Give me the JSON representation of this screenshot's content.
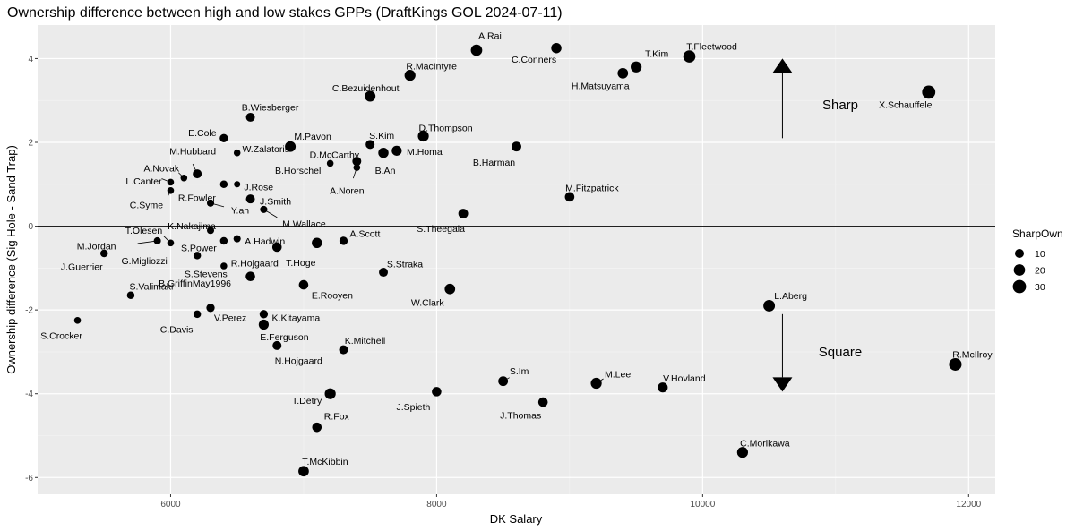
{
  "chart_data": {
    "type": "scatter",
    "title": "Ownership difference between high and low stakes GPPs (DraftKings GOL 2024-07-11)",
    "xlabel": "DK Salary",
    "ylabel": "Ownership difference (Sig Hole - Sand Trap)",
    "xlim": [
      5000,
      12200
    ],
    "ylim": [
      -6.4,
      4.8
    ],
    "xticks": [
      6000,
      8000,
      10000,
      12000
    ],
    "xtick_labels": [
      "6000",
      "8000",
      "10000",
      "12000"
    ],
    "yticks": [
      -6,
      -4,
      -2,
      0,
      2,
      4
    ],
    "ytick_labels": [
      "-6",
      "-4",
      "-2",
      "0",
      "2",
      "4"
    ],
    "grid": true,
    "hline": 0,
    "legend": {
      "title": "SharpOwn",
      "position": "right",
      "entries": [
        {
          "label": "10",
          "value": 10
        },
        {
          "label": "20",
          "value": 20
        },
        {
          "label": "30",
          "value": 30
        }
      ]
    },
    "annotations": [
      {
        "text": "Sharp",
        "x": 10900,
        "y": 2.9,
        "arrow": "up"
      },
      {
        "text": "Square",
        "x": 10900,
        "y": -3.0,
        "arrow": "down"
      }
    ],
    "points": [
      {
        "name": "A.Rai",
        "x": 8300,
        "y": 4.2,
        "size": 20
      },
      {
        "name": "C.Conners",
        "x": 8900,
        "y": 4.25,
        "size": 15
      },
      {
        "name": "T.Fleetwood",
        "x": 9900,
        "y": 4.05,
        "size": 24
      },
      {
        "name": "T.Kim",
        "x": 9500,
        "y": 3.8,
        "size": 18
      },
      {
        "name": "H.Matsuyama",
        "x": 9400,
        "y": 3.65,
        "size": 16
      },
      {
        "name": "R.MacIntyre",
        "x": 7800,
        "y": 3.6,
        "size": 18
      },
      {
        "name": "X.Schauffele",
        "x": 11700,
        "y": 3.2,
        "size": 30
      },
      {
        "name": "C.Bezuidenhout",
        "x": 7500,
        "y": 3.1,
        "size": 17
      },
      {
        "name": "B.Wiesberger",
        "x": 6600,
        "y": 2.6,
        "size": 10
      },
      {
        "name": "E.Cole",
        "x": 6400,
        "y": 2.1,
        "size": 8
      },
      {
        "name": "W.Zalatoris",
        "x": 6500,
        "y": 1.75,
        "size": 4
      },
      {
        "name": "M.Pavon",
        "x": 6900,
        "y": 1.9,
        "size": 17
      },
      {
        "name": "S.Kim",
        "x": 7500,
        "y": 1.95,
        "size": 10
      },
      {
        "name": "D.Thompson",
        "x": 7900,
        "y": 2.15,
        "size": 18
      },
      {
        "name": "M.Homa",
        "x": 7700,
        "y": 1.8,
        "size": 14
      },
      {
        "name": "D.McCarthy",
        "x": 7400,
        "y": 1.55,
        "size": 10
      },
      {
        "name": "B.Horschel",
        "x": 7200,
        "y": 1.5,
        "size": 4
      },
      {
        "name": "B.An",
        "x": 7600,
        "y": 1.75,
        "size": 15
      },
      {
        "name": "A.Noren",
        "x": 7400,
        "y": 1.4,
        "size": 4
      },
      {
        "name": "B.Harman",
        "x": 8600,
        "y": 1.9,
        "size": 13
      },
      {
        "name": "A.Novak",
        "x": 6100,
        "y": 1.15,
        "size": 4
      },
      {
        "name": "M.Hubbard",
        "x": 6200,
        "y": 1.25,
        "size": 10
      },
      {
        "name": "L.Canter",
        "x": 6000,
        "y": 1.05,
        "size": 4
      },
      {
        "name": "R.Fowler",
        "x": 6400,
        "y": 1.0,
        "size": 6
      },
      {
        "name": "J.Rose",
        "x": 6500,
        "y": 1.0,
        "size": 3
      },
      {
        "name": "C.Syme",
        "x": 6000,
        "y": 0.85,
        "size": 4
      },
      {
        "name": "M.Fitzpatrick",
        "x": 9000,
        "y": 0.7,
        "size": 12
      },
      {
        "name": "J.Smith",
        "x": 6600,
        "y": 0.65,
        "size": 10
      },
      {
        "name": "Y.an",
        "x": 6300,
        "y": 0.55,
        "size": 5
      },
      {
        "name": "M.Wallace",
        "x": 6700,
        "y": 0.4,
        "size": 5
      },
      {
        "name": "S.Theegala",
        "x": 8200,
        "y": 0.3,
        "size": 13
      },
      {
        "name": "K.Nakajima",
        "x": 6300,
        "y": -0.1,
        "size": 5
      },
      {
        "name": "T.Olesen",
        "x": 6000,
        "y": -0.4,
        "size": 4
      },
      {
        "name": "M.Jordan",
        "x": 5900,
        "y": -0.35,
        "size": 5
      },
      {
        "name": "A.Hadwin",
        "x": 6500,
        "y": -0.3,
        "size": 5
      },
      {
        "name": "A.Scott",
        "x": 7300,
        "y": -0.35,
        "size": 8
      },
      {
        "name": "T.Hoge",
        "x": 7100,
        "y": -0.4,
        "size": 15
      },
      {
        "name": "S.Power",
        "x": 6400,
        "y": -0.35,
        "size": 6
      },
      {
        "name": "R.Hojgaard",
        "x": 6800,
        "y": -0.5,
        "size": 12
      },
      {
        "name": "J.Guerrier",
        "x": 5500,
        "y": -0.65,
        "size": 6
      },
      {
        "name": "G.Migliozzi",
        "x": 6200,
        "y": -0.7,
        "size": 6
      },
      {
        "name": "S.Stevens",
        "x": 6400,
        "y": -0.95,
        "size": 4
      },
      {
        "name": "S.Straka",
        "x": 7600,
        "y": -1.1,
        "size": 10
      },
      {
        "name": "B.GriffinMay1996",
        "x": 6600,
        "y": -1.2,
        "size": 12
      },
      {
        "name": "E.Rooyen",
        "x": 7000,
        "y": -1.4,
        "size": 12
      },
      {
        "name": "W.Clark",
        "x": 8100,
        "y": -1.5,
        "size": 16
      },
      {
        "name": "S.Valimaki",
        "x": 5700,
        "y": -1.65,
        "size": 6
      },
      {
        "name": "V.Perez",
        "x": 6300,
        "y": -1.95,
        "size": 8
      },
      {
        "name": "C.Davis",
        "x": 6200,
        "y": -2.1,
        "size": 6
      },
      {
        "name": "K.Kitayama",
        "x": 6700,
        "y": -2.1,
        "size": 8
      },
      {
        "name": "E.Ferguson",
        "x": 6700,
        "y": -2.35,
        "size": 14
      },
      {
        "name": "L.Aberg",
        "x": 10500,
        "y": -1.9,
        "size": 21
      },
      {
        "name": "S.Crocker",
        "x": 5300,
        "y": -2.25,
        "size": 4
      },
      {
        "name": "N.Hojgaard",
        "x": 6800,
        "y": -2.85,
        "size": 10
      },
      {
        "name": "K.Mitchell",
        "x": 7300,
        "y": -2.95,
        "size": 10
      },
      {
        "name": "R.McIlroy",
        "x": 11900,
        "y": -3.3,
        "size": 26
      },
      {
        "name": "S.Im",
        "x": 8500,
        "y": -3.7,
        "size": 13
      },
      {
        "name": "M.Lee",
        "x": 9200,
        "y": -3.75,
        "size": 18
      },
      {
        "name": "V.Hovland",
        "x": 9700,
        "y": -3.85,
        "size": 14
      },
      {
        "name": "J.Spieth",
        "x": 8000,
        "y": -3.95,
        "size": 12
      },
      {
        "name": "T.Detry",
        "x": 7200,
        "y": -4.0,
        "size": 18
      },
      {
        "name": "J.Thomas",
        "x": 8800,
        "y": -4.2,
        "size": 12
      },
      {
        "name": "R.Fox",
        "x": 7100,
        "y": -4.8,
        "size": 12
      },
      {
        "name": "C.Morikawa",
        "x": 10300,
        "y": -5.4,
        "size": 18
      },
      {
        "name": "T.McKibbin",
        "x": 7000,
        "y": -5.85,
        "size": 16
      }
    ]
  }
}
